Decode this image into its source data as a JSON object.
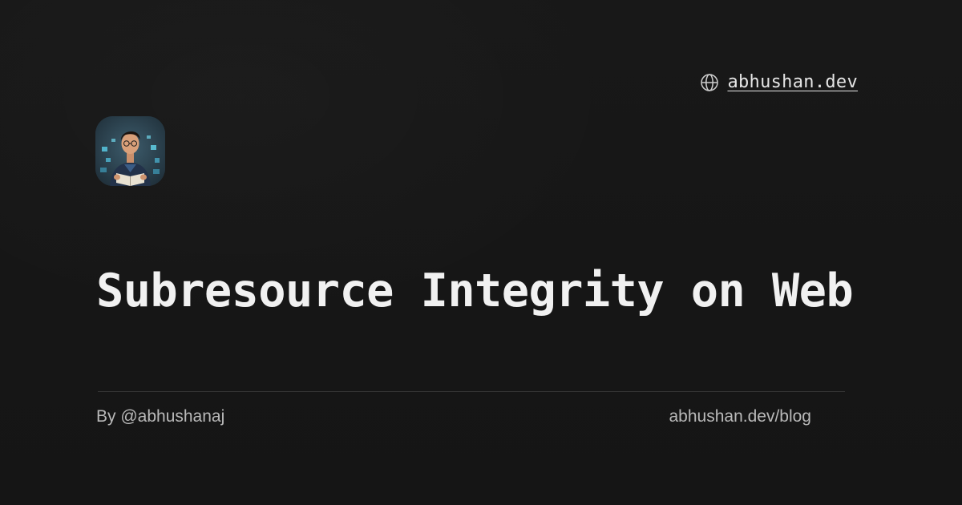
{
  "header": {
    "site_label": "abhushan.dev",
    "globe_icon": "globe-icon"
  },
  "avatar": {
    "description_icon": "avatar-illustration"
  },
  "main": {
    "title": "Subresource Integrity on Web"
  },
  "footer": {
    "author": "By @abhushanaj",
    "blog_url": "abhushan.dev/blog"
  },
  "colors": {
    "background": "#161616",
    "title": "#f1f1f1",
    "muted_text": "#b9b9b9",
    "divider": "#353535"
  }
}
